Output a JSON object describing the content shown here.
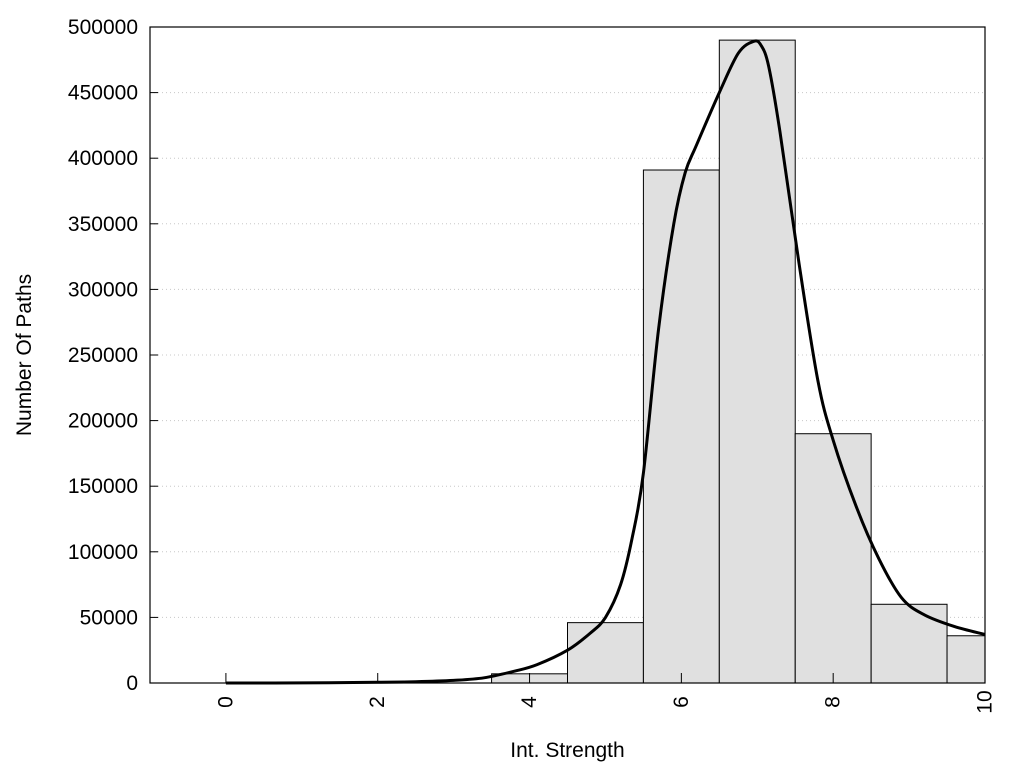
{
  "chart_data": {
    "type": "bar",
    "xlabel": "Int. Strength",
    "ylabel": "Number Of Paths",
    "xlim": [
      -1,
      10
    ],
    "ylim": [
      0,
      500000
    ],
    "grid": "horizontal-dotted",
    "x_ticks": [
      0,
      2,
      4,
      6,
      8,
      10
    ],
    "y_ticks": [
      0,
      50000,
      100000,
      150000,
      200000,
      250000,
      300000,
      350000,
      400000,
      450000,
      500000
    ],
    "bin_width": 1,
    "bins": [
      {
        "center": 0,
        "value": 0
      },
      {
        "center": 1,
        "value": 0
      },
      {
        "center": 2,
        "value": 0
      },
      {
        "center": 3,
        "value": 0
      },
      {
        "center": 4,
        "value": 7000
      },
      {
        "center": 5,
        "value": 46000
      },
      {
        "center": 6,
        "value": 391000
      },
      {
        "center": 7,
        "value": 490000
      },
      {
        "center": 8,
        "value": 190000
      },
      {
        "center": 9,
        "value": 60000
      },
      {
        "center": 10,
        "value": 36000
      }
    ],
    "curve": {
      "x": [
        0,
        1,
        2,
        2.5,
        3,
        3.4,
        3.8,
        4.1,
        4.5,
        4.8,
        5.0,
        5.2,
        5.35,
        5.5,
        5.7,
        5.9,
        6.05,
        6.2,
        6.5,
        6.75,
        6.95,
        7.05,
        7.15,
        7.3,
        7.55,
        7.8,
        8.0,
        8.3,
        8.6,
        8.9,
        9.2,
        9.6,
        10.0
      ],
      "y": [
        0,
        100,
        500,
        1000,
        2000,
        4000,
        9000,
        14000,
        25000,
        38000,
        50000,
        75000,
        110000,
        160000,
        270000,
        350000,
        389000,
        410000,
        450000,
        480000,
        489000,
        486000,
        470000,
        420000,
        320000,
        230000,
        185000,
        135000,
        95000,
        65000,
        52000,
        43000,
        37000
      ]
    }
  }
}
